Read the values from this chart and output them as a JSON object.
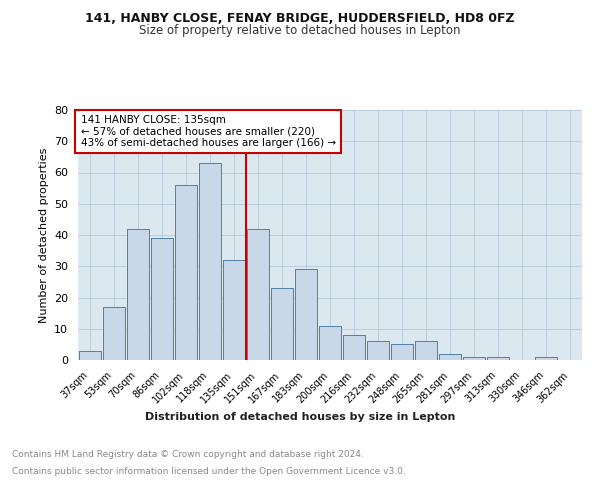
{
  "title1": "141, HANBY CLOSE, FENAY BRIDGE, HUDDERSFIELD, HD8 0FZ",
  "title2": "Size of property relative to detached houses in Lepton",
  "xlabel": "Distribution of detached houses by size in Lepton",
  "ylabel": "Number of detached properties",
  "categories": [
    "37sqm",
    "53sqm",
    "70sqm",
    "86sqm",
    "102sqm",
    "118sqm",
    "135sqm",
    "151sqm",
    "167sqm",
    "183sqm",
    "200sqm",
    "216sqm",
    "232sqm",
    "248sqm",
    "265sqm",
    "281sqm",
    "297sqm",
    "313sqm",
    "330sqm",
    "346sqm",
    "362sqm"
  ],
  "values": [
    3,
    17,
    42,
    39,
    56,
    63,
    32,
    42,
    23,
    29,
    11,
    8,
    6,
    5,
    6,
    2,
    1,
    1,
    0,
    1,
    0
  ],
  "bar_color": "#c8d8e8",
  "bar_edge_color": "#5080a8",
  "highlight_index": 6,
  "vline_x": 6.5,
  "ylim": [
    0,
    80
  ],
  "yticks": [
    0,
    10,
    20,
    30,
    40,
    50,
    60,
    70,
    80
  ],
  "annotation_text": "141 HANBY CLOSE: 135sqm\n← 57% of detached houses are smaller (220)\n43% of semi-detached houses are larger (166) →",
  "annotation_box_color": "#ffffff",
  "annotation_box_edge": "#cc0000",
  "vline_color": "#cc0000",
  "footer_line1": "Contains HM Land Registry data © Crown copyright and database right 2024.",
  "footer_line2": "Contains public sector information licensed under the Open Government Licence v3.0.",
  "background_color": "#dce8f0",
  "plot_bg_color": "#ffffff"
}
